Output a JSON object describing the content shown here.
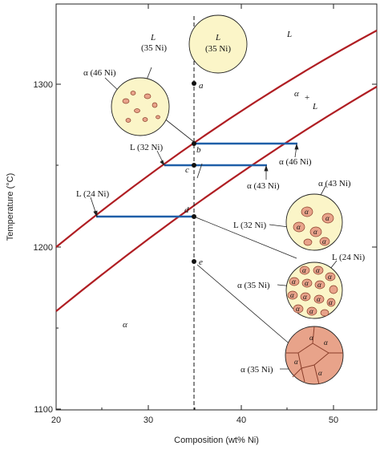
{
  "axes": {
    "x_label": "Composition (wt% Ni)",
    "y_label": "Temperature (°C)",
    "x_ticks": [
      "20",
      "30",
      "40",
      "50"
    ],
    "y_ticks": [
      "1300",
      "1200",
      "1100"
    ]
  },
  "phase_labels": {
    "liquid": "L",
    "two_phase_alpha": "α",
    "two_phase_plus": "+",
    "two_phase_L": "L",
    "solid": "α"
  },
  "points": {
    "a": "a",
    "b": "b",
    "c": "c",
    "d": "d",
    "e": "e"
  },
  "annotations": {
    "c1_l": "L",
    "c1_comp": "(35 Ni)",
    "c2_l": "L",
    "c2_comp": "(35 Ni)",
    "alpha46_top": "α (46 Ni)",
    "l32_top": "L (32 Ni)",
    "alpha46_right": "α (46 Ni)",
    "alpha43_mid": "α (43 Ni)",
    "alpha43_right": "α (43 Ni)",
    "l24": "L (24 Ni)",
    "l32_mid": "L (32 Ni)",
    "l24_right": "L (24 Ni)",
    "alpha35_mid": "α (35 Ni)",
    "alpha35_low": "α (35 Ni)"
  },
  "grain_symbol": "α",
  "colors": {
    "phase_boundary": "#b01e23",
    "tie_line": "#1f5fa8",
    "liquid_fill": "#fbf5c8",
    "solid_grain": "#e8a38a",
    "grain_boundary": "#8a3e2a"
  }
}
